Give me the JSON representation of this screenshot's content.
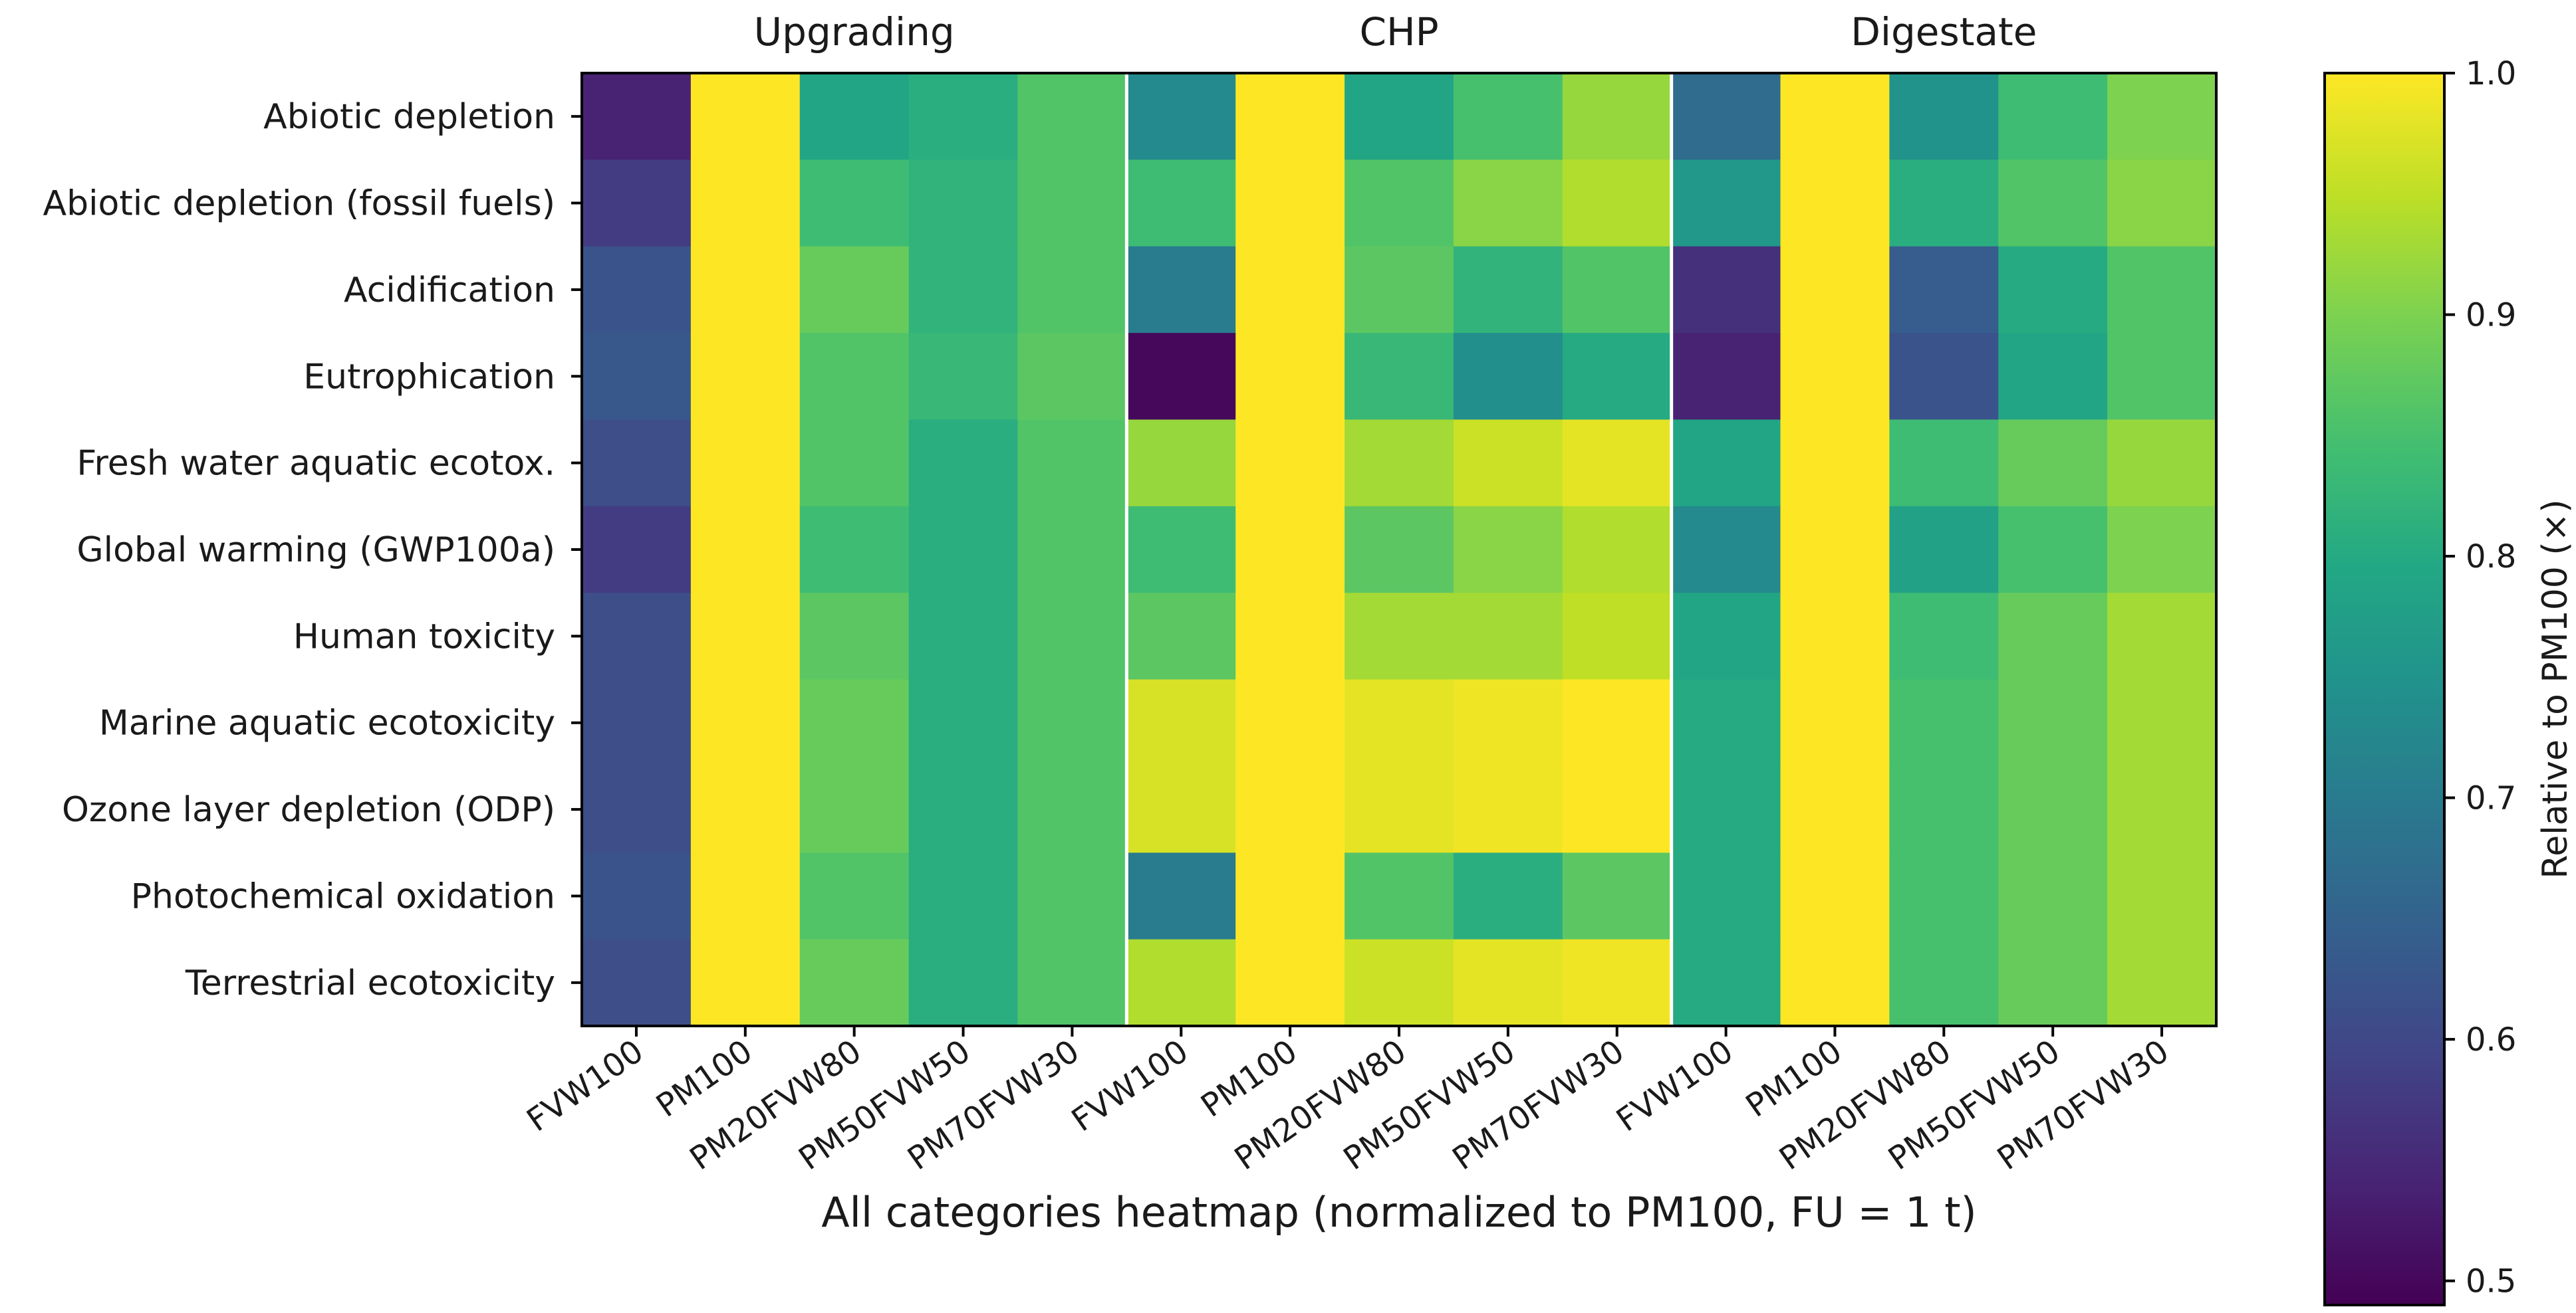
{
  "chart_data": {
    "type": "heatmap",
    "xlabel": "All categories heatmap (normalized to PM100, FU = 1 t)",
    "groups": [
      "Upgrading",
      "CHP",
      "Digestate"
    ],
    "scenarios": [
      "FVW100",
      "PM100",
      "PM20FVW80",
      "PM50FVW50",
      "PM70FVW30"
    ],
    "columns": [
      "FVW100",
      "PM100",
      "PM20FVW80",
      "PM50FVW50",
      "PM70FVW30",
      "FVW100",
      "PM100",
      "PM20FVW80",
      "PM50FVW50",
      "PM70FVW30",
      "FVW100",
      "PM100",
      "PM20FVW80",
      "PM50FVW50",
      "PM70FVW30"
    ],
    "rows": [
      "Abiotic depletion",
      "Abiotic depletion (fossil fuels)",
      "Acidification",
      "Eutrophication",
      "Fresh water aquatic ecotox.",
      "Global warming (GWP100a)",
      "Human toxicity",
      "Marine aquatic ecotoxicity",
      "Ozone layer depletion (ODP)",
      "Photochemical oxidation",
      "Terrestrial ecotoxicity"
    ],
    "values": [
      [
        0.54,
        1.0,
        0.79,
        0.81,
        0.86,
        0.73,
        1.0,
        0.79,
        0.85,
        0.92,
        0.67,
        1.0,
        0.75,
        0.84,
        0.9
      ],
      [
        0.58,
        1.0,
        0.84,
        0.82,
        0.86,
        0.84,
        1.0,
        0.86,
        0.91,
        0.94,
        0.76,
        1.0,
        0.81,
        0.86,
        0.91
      ],
      [
        0.62,
        1.0,
        0.88,
        0.82,
        0.86,
        0.7,
        1.0,
        0.87,
        0.82,
        0.86,
        0.56,
        1.0,
        0.64,
        0.8,
        0.86
      ],
      [
        0.63,
        1.0,
        0.86,
        0.83,
        0.87,
        0.5,
        1.0,
        0.83,
        0.74,
        0.8,
        0.54,
        1.0,
        0.62,
        0.79,
        0.86
      ],
      [
        0.61,
        1.0,
        0.86,
        0.81,
        0.86,
        0.92,
        1.0,
        0.93,
        0.96,
        0.98,
        0.79,
        1.0,
        0.84,
        0.88,
        0.92
      ],
      [
        0.58,
        1.0,
        0.84,
        0.81,
        0.86,
        0.84,
        1.0,
        0.87,
        0.91,
        0.94,
        0.73,
        1.0,
        0.78,
        0.85,
        0.9
      ],
      [
        0.61,
        1.0,
        0.87,
        0.81,
        0.86,
        0.87,
        1.0,
        0.93,
        0.93,
        0.95,
        0.79,
        1.0,
        0.84,
        0.88,
        0.93
      ],
      [
        0.61,
        1.0,
        0.88,
        0.81,
        0.86,
        0.97,
        1.0,
        0.98,
        0.99,
        1.0,
        0.8,
        1.0,
        0.85,
        0.88,
        0.93
      ],
      [
        0.61,
        1.0,
        0.88,
        0.81,
        0.86,
        0.97,
        1.0,
        0.98,
        0.99,
        1.0,
        0.8,
        1.0,
        0.85,
        0.88,
        0.93
      ],
      [
        0.62,
        1.0,
        0.86,
        0.81,
        0.86,
        0.7,
        1.0,
        0.86,
        0.81,
        0.87,
        0.8,
        1.0,
        0.85,
        0.88,
        0.93
      ],
      [
        0.61,
        1.0,
        0.88,
        0.81,
        0.86,
        0.94,
        1.0,
        0.96,
        0.98,
        0.99,
        0.8,
        1.0,
        0.85,
        0.88,
        0.93
      ]
    ],
    "colorbar": {
      "label": "Relative to PM100 (×)",
      "vmin": 0.49,
      "vmax": 1.0,
      "ticks": [
        0.5,
        0.6,
        0.7,
        0.8,
        0.9,
        1.0
      ],
      "tick_labels": [
        "0.5",
        "0.6",
        "0.7",
        "0.8",
        "0.9",
        "1.0"
      ],
      "colormap": "viridis"
    }
  }
}
